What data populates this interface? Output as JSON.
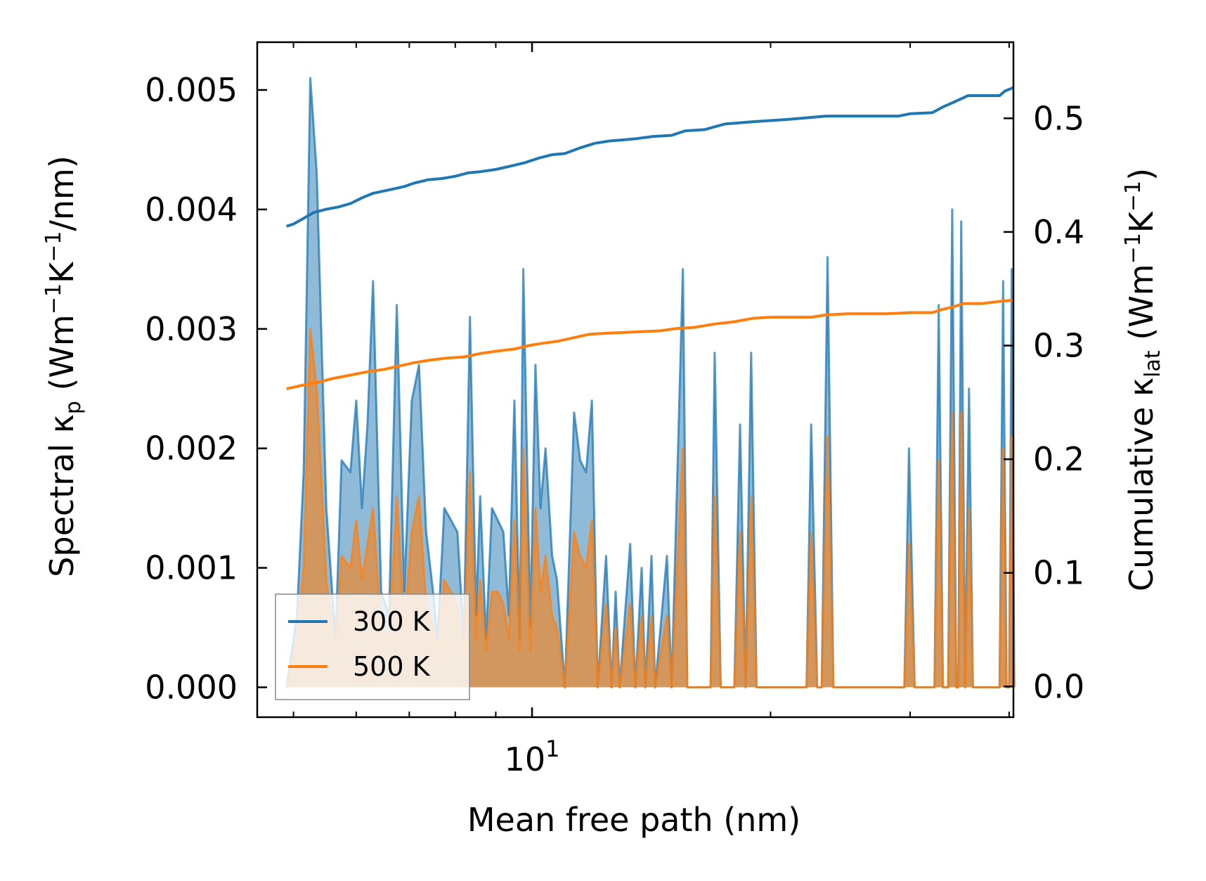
{
  "chart_data": {
    "type": "line",
    "x_scale": "log",
    "xlabel": "Mean free path (nm)",
    "ylabel_left": {
      "base": "Spectral κ",
      "sub": "p",
      "unit_open": " (Wm",
      "sup1": "−1",
      "k": "K",
      "sup2": "−1",
      "unit_close": "/nm)"
    },
    "ylabel_right": {
      "base": "Cumulative κ",
      "sub": "lat",
      "unit_open": " (Wm",
      "sup1": "−1",
      "k": "K",
      "sup2": "−1",
      "unit_close": ")"
    },
    "xlim": [
      4.5,
      40.5
    ],
    "ylim_left": [
      -0.00025,
      0.0054
    ],
    "ylim_right": [
      -0.027,
      0.567
    ],
    "x_tick_major": {
      "value": 10,
      "base": "10",
      "exp": "1"
    },
    "x_tick_minor": [
      5,
      6,
      7,
      8,
      9,
      20,
      30,
      40
    ],
    "y_left_ticks": [
      {
        "value": 0,
        "label": "0.000"
      },
      {
        "value": 0.001,
        "label": "0.001"
      },
      {
        "value": 0.002,
        "label": "0.002"
      },
      {
        "value": 0.003,
        "label": "0.003"
      },
      {
        "value": 0.004,
        "label": "0.004"
      },
      {
        "value": 0.005,
        "label": "0.005"
      }
    ],
    "y_right_ticks": [
      {
        "value": 0,
        "label": "0.0"
      },
      {
        "value": 0.1,
        "label": "0.1"
      },
      {
        "value": 0.2,
        "label": "0.2"
      },
      {
        "value": 0.3,
        "label": "0.3"
      },
      {
        "value": 0.4,
        "label": "0.4"
      },
      {
        "value": 0.5,
        "label": "0.5"
      }
    ],
    "legend": {
      "position": "lower-left",
      "entries": [
        {
          "label": "300 K",
          "color": "#1f77b4"
        },
        {
          "label": "500 K",
          "color": "#ff7f0e"
        }
      ]
    },
    "series": [
      {
        "name": "300 K",
        "color": "#1f77b4",
        "spectral": [
          [
            4.9,
            0
          ],
          [
            5.05,
            0.0006
          ],
          [
            5.15,
            0.0018
          ],
          [
            5.25,
            0.0051
          ],
          [
            5.35,
            0.0043
          ],
          [
            5.5,
            0.0015
          ],
          [
            5.65,
            0.0004
          ],
          [
            5.75,
            0.0019
          ],
          [
            5.9,
            0.0018
          ],
          [
            6.0,
            0.0024
          ],
          [
            6.1,
            0.0015
          ],
          [
            6.2,
            0.0022
          ],
          [
            6.3,
            0.0034
          ],
          [
            6.45,
            0.0008
          ],
          [
            6.6,
            0.0006
          ],
          [
            6.75,
            0.0032
          ],
          [
            6.9,
            0.0008
          ],
          [
            7.05,
            0.0024
          ],
          [
            7.2,
            0.0027
          ],
          [
            7.35,
            0.0013
          ],
          [
            7.5,
            0.0008
          ],
          [
            7.6,
            0.0004
          ],
          [
            7.75,
            0.0015
          ],
          [
            7.9,
            0.0014
          ],
          [
            8.05,
            0.0013
          ],
          [
            8.2,
            0.0004
          ],
          [
            8.35,
            0.0031
          ],
          [
            8.5,
            0.0006
          ],
          [
            8.6,
            0.0016
          ],
          [
            8.75,
            0.0004
          ],
          [
            8.9,
            0.0015
          ],
          [
            9.05,
            0.0014
          ],
          [
            9.2,
            0.0013
          ],
          [
            9.35,
            0.0006
          ],
          [
            9.5,
            0.0024
          ],
          [
            9.65,
            0.0004
          ],
          [
            9.75,
            0.0035
          ],
          [
            9.95,
            0.0005
          ],
          [
            10.1,
            0.0027
          ],
          [
            10.25,
            0.0015
          ],
          [
            10.4,
            0.002
          ],
          [
            10.6,
            0.0011
          ],
          [
            10.75,
            0.0009
          ],
          [
            11.0,
            0
          ],
          [
            11.3,
            0.0023
          ],
          [
            11.5,
            0.0019
          ],
          [
            11.7,
            0.0018
          ],
          [
            11.9,
            0.0024
          ],
          [
            12.1,
            0
          ],
          [
            12.4,
            0.0011
          ],
          [
            12.6,
            0
          ],
          [
            12.75,
            0.0008
          ],
          [
            12.9,
            0
          ],
          [
            13.3,
            0.0012
          ],
          [
            13.5,
            0
          ],
          [
            13.75,
            0.001
          ],
          [
            13.9,
            0
          ],
          [
            14.15,
            0.0011
          ],
          [
            14.3,
            0
          ],
          [
            14.8,
            0.0011
          ],
          [
            15.0,
            0
          ],
          [
            15.5,
            0.0035
          ],
          [
            15.7,
            0
          ],
          [
            16.8,
            0
          ],
          [
            17.0,
            0.0028
          ],
          [
            17.3,
            0
          ],
          [
            18.0,
            0
          ],
          [
            18.3,
            0.0022
          ],
          [
            18.6,
            0
          ],
          [
            18.9,
            0.0028
          ],
          [
            19.2,
            0
          ],
          [
            22.2,
            0
          ],
          [
            22.5,
            0.0022
          ],
          [
            22.9,
            0
          ],
          [
            23.2,
            0
          ],
          [
            23.6,
            0.0036
          ],
          [
            24.0,
            0
          ],
          [
            29.5,
            0
          ],
          [
            29.9,
            0.002
          ],
          [
            30.4,
            0
          ],
          [
            32.2,
            0
          ],
          [
            32.6,
            0.0032
          ],
          [
            33.0,
            0
          ],
          [
            33.5,
            0
          ],
          [
            33.9,
            0.004
          ],
          [
            34.3,
            0
          ],
          [
            34.5,
            0
          ],
          [
            34.8,
            0.0039
          ],
          [
            35.2,
            0
          ],
          [
            35.6,
            0.0025
          ],
          [
            36.0,
            0
          ],
          [
            38.9,
            0
          ],
          [
            39.3,
            0.0034
          ],
          [
            39.7,
            0
          ],
          [
            40.0,
            0
          ],
          [
            40.3,
            0.0035
          ],
          [
            40.6,
            0
          ]
        ],
        "cumulative": [
          [
            4.9,
            0.405
          ],
          [
            5.0,
            0.407
          ],
          [
            5.15,
            0.412
          ],
          [
            5.3,
            0.417
          ],
          [
            5.5,
            0.42
          ],
          [
            5.7,
            0.422
          ],
          [
            5.9,
            0.425
          ],
          [
            6.1,
            0.43
          ],
          [
            6.3,
            0.434
          ],
          [
            6.6,
            0.437
          ],
          [
            6.9,
            0.44
          ],
          [
            7.1,
            0.443
          ],
          [
            7.4,
            0.446
          ],
          [
            7.7,
            0.447
          ],
          [
            8.0,
            0.449
          ],
          [
            8.3,
            0.452
          ],
          [
            8.6,
            0.453
          ],
          [
            9.0,
            0.455
          ],
          [
            9.4,
            0.458
          ],
          [
            9.8,
            0.461
          ],
          [
            10.2,
            0.465
          ],
          [
            10.6,
            0.468
          ],
          [
            11.0,
            0.469
          ],
          [
            11.5,
            0.474
          ],
          [
            12.0,
            0.478
          ],
          [
            12.5,
            0.48
          ],
          [
            13.0,
            0.481
          ],
          [
            13.5,
            0.482
          ],
          [
            14.2,
            0.484
          ],
          [
            15.0,
            0.485
          ],
          [
            15.6,
            0.489
          ],
          [
            16.5,
            0.49
          ],
          [
            17.5,
            0.495
          ],
          [
            19.0,
            0.497
          ],
          [
            21.0,
            0.499
          ],
          [
            23.5,
            0.502
          ],
          [
            26.5,
            0.502
          ],
          [
            29.0,
            0.502
          ],
          [
            30.0,
            0.504
          ],
          [
            32.0,
            0.505
          ],
          [
            33.0,
            0.51
          ],
          [
            34.0,
            0.514
          ],
          [
            35.5,
            0.52
          ],
          [
            37.5,
            0.52
          ],
          [
            38.9,
            0.52
          ],
          [
            39.5,
            0.524
          ],
          [
            40.5,
            0.527
          ]
        ]
      },
      {
        "name": "500 K",
        "color": "#ff7f0e",
        "spectral": [
          [
            4.9,
            0
          ],
          [
            5.05,
            0.0004
          ],
          [
            5.15,
            0.001
          ],
          [
            5.25,
            0.003
          ],
          [
            5.35,
            0.0025
          ],
          [
            5.5,
            0.0009
          ],
          [
            5.65,
            0.0003
          ],
          [
            5.75,
            0.0011
          ],
          [
            5.9,
            0.001
          ],
          [
            6.0,
            0.0014
          ],
          [
            6.1,
            0.0009
          ],
          [
            6.2,
            0.0012
          ],
          [
            6.3,
            0.0015
          ],
          [
            6.45,
            0.0005
          ],
          [
            6.6,
            0.0004
          ],
          [
            6.75,
            0.0016
          ],
          [
            6.9,
            0.0005
          ],
          [
            7.05,
            0.0013
          ],
          [
            7.2,
            0.0016
          ],
          [
            7.35,
            0.0007
          ],
          [
            7.5,
            0.0005
          ],
          [
            7.6,
            0.0003
          ],
          [
            7.75,
            0.0009
          ],
          [
            7.9,
            0.0008
          ],
          [
            8.05,
            0.0007
          ],
          [
            8.2,
            0.0003
          ],
          [
            8.35,
            0.0018
          ],
          [
            8.5,
            0.0004
          ],
          [
            8.6,
            0.0009
          ],
          [
            8.75,
            0.0003
          ],
          [
            8.9,
            0.0008
          ],
          [
            9.05,
            0.0008
          ],
          [
            9.2,
            0.0007
          ],
          [
            9.35,
            0.0004
          ],
          [
            9.5,
            0.0014
          ],
          [
            9.65,
            0.0003
          ],
          [
            9.75,
            0.002
          ],
          [
            9.95,
            0.0003
          ],
          [
            10.1,
            0.0015
          ],
          [
            10.25,
            0.0008
          ],
          [
            10.4,
            0.0011
          ],
          [
            10.6,
            0.0006
          ],
          [
            10.75,
            0.0005
          ],
          [
            11.0,
            0
          ],
          [
            11.3,
            0.0013
          ],
          [
            11.5,
            0.0011
          ],
          [
            11.7,
            0.001
          ],
          [
            11.9,
            0.0014
          ],
          [
            12.1,
            0
          ],
          [
            12.4,
            0.0007
          ],
          [
            12.6,
            0
          ],
          [
            12.75,
            0.0005
          ],
          [
            12.9,
            0
          ],
          [
            13.3,
            0.0007
          ],
          [
            13.5,
            0
          ],
          [
            13.75,
            0.0006
          ],
          [
            13.9,
            0
          ],
          [
            14.15,
            0.0006
          ],
          [
            14.3,
            0
          ],
          [
            14.8,
            0.0006
          ],
          [
            15.0,
            0
          ],
          [
            15.5,
            0.002
          ],
          [
            15.7,
            0
          ],
          [
            16.8,
            0
          ],
          [
            17.0,
            0.0016
          ],
          [
            17.3,
            0
          ],
          [
            18.0,
            0
          ],
          [
            18.3,
            0.0013
          ],
          [
            18.6,
            0
          ],
          [
            18.9,
            0.0016
          ],
          [
            19.2,
            0
          ],
          [
            22.2,
            0
          ],
          [
            22.5,
            0.0013
          ],
          [
            22.9,
            0
          ],
          [
            23.2,
            0
          ],
          [
            23.6,
            0.0021
          ],
          [
            24.0,
            0
          ],
          [
            29.5,
            0
          ],
          [
            29.9,
            0.0012
          ],
          [
            30.4,
            0
          ],
          [
            32.2,
            0
          ],
          [
            32.6,
            0.0019
          ],
          [
            33.0,
            0
          ],
          [
            33.5,
            0
          ],
          [
            33.9,
            0.0023
          ],
          [
            34.3,
            0
          ],
          [
            34.5,
            0
          ],
          [
            34.8,
            0.0023
          ],
          [
            35.2,
            0
          ],
          [
            35.6,
            0.0015
          ],
          [
            36.0,
            0
          ],
          [
            38.9,
            0
          ],
          [
            39.3,
            0.002
          ],
          [
            39.7,
            0
          ],
          [
            40.0,
            0
          ],
          [
            40.3,
            0.0021
          ],
          [
            40.6,
            0
          ]
        ],
        "cumulative": [
          [
            4.9,
            0.262
          ],
          [
            5.05,
            0.264
          ],
          [
            5.2,
            0.266
          ],
          [
            5.4,
            0.268
          ],
          [
            5.6,
            0.271
          ],
          [
            5.9,
            0.274
          ],
          [
            6.2,
            0.277
          ],
          [
            6.5,
            0.279
          ],
          [
            6.8,
            0.282
          ],
          [
            7.1,
            0.285
          ],
          [
            7.4,
            0.287
          ],
          [
            7.8,
            0.289
          ],
          [
            8.2,
            0.29
          ],
          [
            8.6,
            0.293
          ],
          [
            9.0,
            0.295
          ],
          [
            9.5,
            0.297
          ],
          [
            9.9,
            0.3
          ],
          [
            10.3,
            0.302
          ],
          [
            10.8,
            0.304
          ],
          [
            11.3,
            0.307
          ],
          [
            11.8,
            0.31
          ],
          [
            12.5,
            0.311
          ],
          [
            13.5,
            0.312
          ],
          [
            14.5,
            0.313
          ],
          [
            15.2,
            0.315
          ],
          [
            16.0,
            0.316
          ],
          [
            17.0,
            0.319
          ],
          [
            18.0,
            0.321
          ],
          [
            19.0,
            0.324
          ],
          [
            20.0,
            0.325
          ],
          [
            22.5,
            0.325
          ],
          [
            23.5,
            0.327
          ],
          [
            25.0,
            0.328
          ],
          [
            28.0,
            0.328
          ],
          [
            30.0,
            0.329
          ],
          [
            32.0,
            0.329
          ],
          [
            33.0,
            0.332
          ],
          [
            34.0,
            0.334
          ],
          [
            35.0,
            0.337
          ],
          [
            37.0,
            0.337
          ],
          [
            39.0,
            0.339
          ],
          [
            40.5,
            0.34
          ]
        ]
      }
    ]
  }
}
